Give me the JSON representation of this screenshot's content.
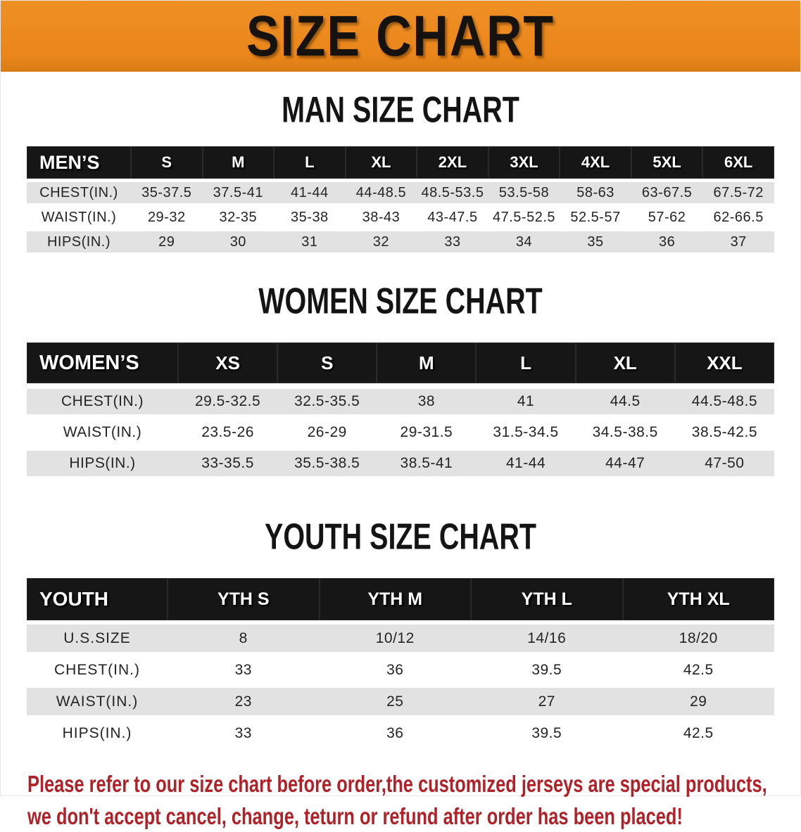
{
  "banner": {
    "title": "SIZE CHART",
    "background_color": "#EC8A1E"
  },
  "sections": [
    {
      "heading": "MAN SIZE CHART",
      "table": {
        "header_label": "MEN’S",
        "columns": [
          "S",
          "M",
          "L",
          "XL",
          "2XL",
          "3XL",
          "4XL",
          "5XL",
          "6XL"
        ],
        "rows": [
          {
            "label": "CHEST(IN.)",
            "values": [
              "35-37.5",
              "37.5-41",
              "41-44",
              "44-48.5",
              "48.5-53.5",
              "53.5-58",
              "58-63",
              "63-67.5",
              "67.5-72"
            ]
          },
          {
            "label": "WAIST(IN.)",
            "values": [
              "29-32",
              "32-35",
              "35-38",
              "38-43",
              "43-47.5",
              "47.5-52.5",
              "52.5-57",
              "57-62",
              "62-66.5"
            ]
          },
          {
            "label": "HIPS(IN.)",
            "values": [
              "29",
              "30",
              "31",
              "32",
              "33",
              "34",
              "35",
              "36",
              "37"
            ]
          }
        ]
      }
    },
    {
      "heading": "WOMEN SIZE CHART",
      "table": {
        "header_label": "WOMEN’S",
        "columns": [
          "XS",
          "S",
          "M",
          "L",
          "XL",
          "XXL"
        ],
        "rows": [
          {
            "label": "CHEST(IN.)",
            "values": [
              "29.5-32.5",
              "32.5-35.5",
              "38",
              "41",
              "44.5",
              "44.5-48.5"
            ]
          },
          {
            "label": "WAIST(IN.)",
            "values": [
              "23.5-26",
              "26-29",
              "29-31.5",
              "31.5-34.5",
              "34.5-38.5",
              "38.5-42.5"
            ]
          },
          {
            "label": "HIPS(IN.)",
            "values": [
              "33-35.5",
              "35.5-38.5",
              "38.5-41",
              "41-44",
              "44-47",
              "47-50"
            ]
          }
        ]
      }
    },
    {
      "heading": "YOUTH SIZE CHART",
      "table": {
        "header_label": "YOUTH",
        "columns": [
          "YTH S",
          "YTH M",
          "YTH L",
          "YTH XL"
        ],
        "rows": [
          {
            "label": "U.S.SIZE",
            "values": [
              "8",
              "10/12",
              "14/16",
              "18/20"
            ]
          },
          {
            "label": "CHEST(IN.)",
            "values": [
              "33",
              "36",
              "39.5",
              "42.5"
            ]
          },
          {
            "label": "WAIST(IN.)",
            "values": [
              "23",
              "25",
              "27",
              "29"
            ]
          },
          {
            "label": "HIPS(IN.)",
            "values": [
              "33",
              "36",
              "39.5",
              "42.5"
            ]
          }
        ]
      }
    }
  ],
  "disclaimer": {
    "line1": "Please refer to our size chart before order,the customized jerseys are special products,",
    "line2": "we don't accept cancel, change, teturn or refund after order has been placed!",
    "text_color": "#B02228"
  }
}
